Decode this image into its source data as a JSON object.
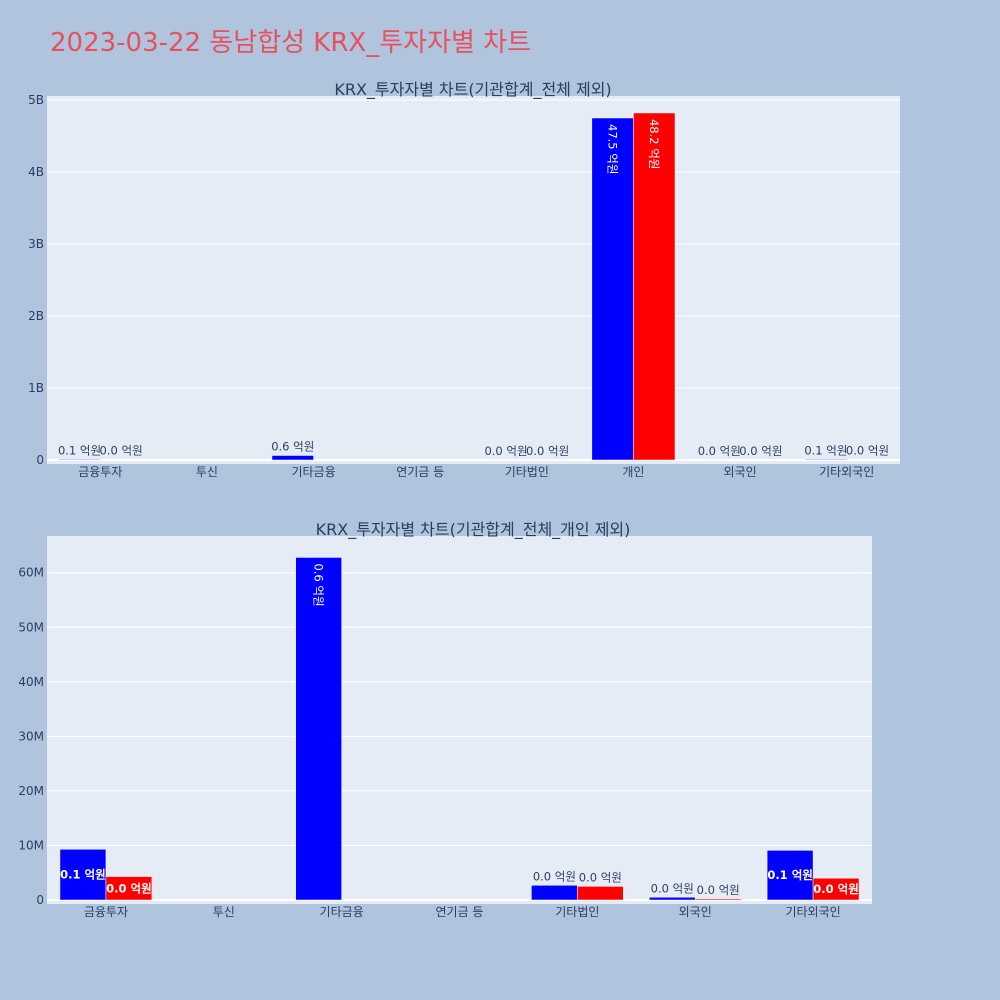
{
  "title": "2023-03-22 동남합성 KRX_투자자별 차트",
  "colors": {
    "buy": "#0000ff",
    "sell": "#ff0000",
    "plot_bg": "#e5ecf6",
    "page_bg": "#b0c4de",
    "title": "#e8505b"
  },
  "chart_data": [
    {
      "type": "bar",
      "title": "KRX_투자자별 차트(기관합계_전체 제외)",
      "categories": [
        "금융투자",
        "투신",
        "기타금융",
        "연기금 등",
        "기타법인",
        "개인",
        "외국인",
        "기타외국인"
      ],
      "ylim": [
        0,
        5000000000.0
      ],
      "yticks": [
        0,
        1000000000.0,
        2000000000.0,
        3000000000.0,
        4000000000.0,
        5000000000.0
      ],
      "ytick_labels": [
        "0",
        "1B",
        "2B",
        "3B",
        "4B",
        "5B"
      ],
      "grid": true,
      "series": [
        {
          "values": [
            9300000,
            0,
            62800000,
            0,
            2700000,
            4750000000,
            500000,
            9100000
          ],
          "labels": [
            "0.1 억원",
            "",
            "0.6 억원",
            "",
            "0.0 억원",
            "47.5 억원",
            "0.0 억원",
            "0.1 억원"
          ]
        },
        {
          "values": [
            4300000,
            0,
            0,
            0,
            2500000,
            4820000000,
            200000,
            4000000
          ],
          "labels": [
            "0.0 억원",
            "",
            "",
            "",
            "0.0 억원",
            "48.2 억원",
            "0.0 억원",
            "0.0 억원"
          ]
        }
      ]
    },
    {
      "type": "bar",
      "title": "KRX_투자자별 차트(기관합계_전체_개인 제외)",
      "categories": [
        "금융투자",
        "투신",
        "기타금융",
        "연기금 등",
        "기타법인",
        "외국인",
        "기타외국인"
      ],
      "ylim": [
        0,
        66000000
      ],
      "yticks": [
        0,
        10000000,
        20000000,
        30000000,
        40000000,
        50000000,
        60000000
      ],
      "ytick_labels": [
        "0",
        "10M",
        "20M",
        "30M",
        "40M",
        "50M",
        "60M"
      ],
      "grid": true,
      "series": [
        {
          "values": [
            9300000,
            0,
            62800000,
            0,
            2700000,
            500000,
            9100000
          ],
          "labels": [
            "0.1 억원",
            "",
            "0.6 억원",
            "",
            "0.0 억원",
            "0.0 억원",
            "0.1 억원"
          ]
        },
        {
          "values": [
            4300000,
            0,
            0,
            0,
            2500000,
            200000,
            4000000
          ],
          "labels": [
            "0.0 억원",
            "",
            "",
            "",
            "0.0 억원",
            "0.0 억원",
            "0.0 억원"
          ]
        }
      ]
    }
  ]
}
